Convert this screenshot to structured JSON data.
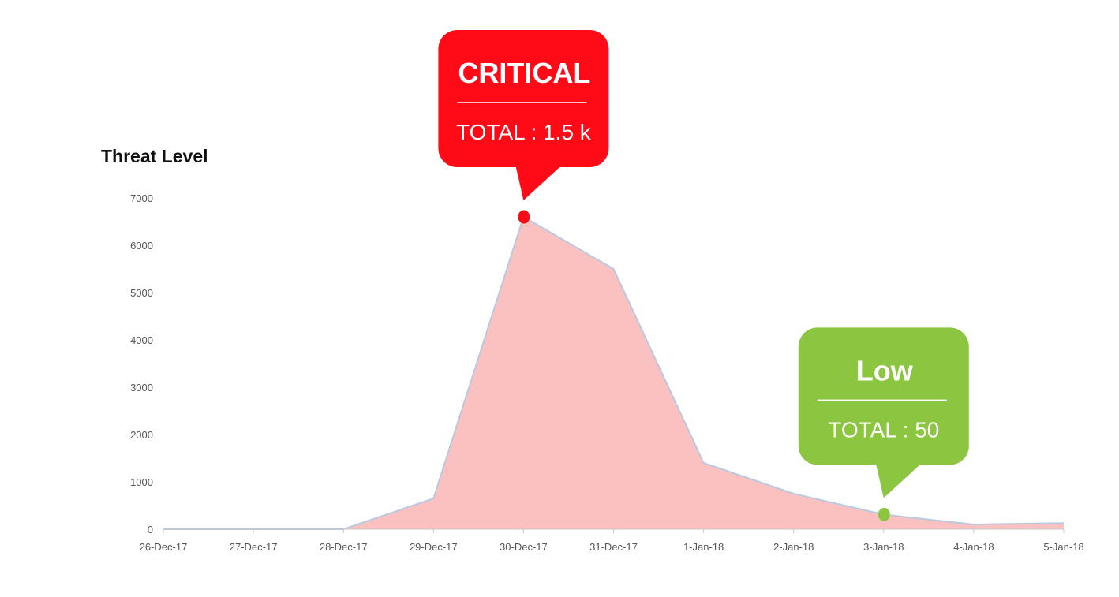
{
  "chart_data": {
    "type": "area",
    "ylabel": "Threat Level",
    "xlabel": "",
    "x": [
      "26-Dec-17",
      "27-Dec-17",
      "28-Dec-17",
      "29-Dec-17",
      "30-Dec-17",
      "31-Dec-17",
      "1-Jan-18",
      "2-Jan-18",
      "3-Jan-18",
      "4-Jan-18",
      "5-Jan-18"
    ],
    "series": [
      {
        "values": [
          0,
          0,
          0,
          650,
          6600,
          5500,
          1400,
          750,
          310,
          100,
          130
        ],
        "fill_color": "#fbc0c0",
        "line_color": "#b9c9e0"
      }
    ],
    "ylim": [
      0,
      7000
    ],
    "yticks": [
      "0",
      "1000",
      "2000",
      "3000",
      "4000",
      "5000",
      "6000",
      "7000"
    ],
    "grid": false,
    "annotations": [
      {
        "label": "CRITICAL",
        "total": "TOTAL : 1.5 k",
        "x": "30-Dec-17",
        "y": 6600,
        "color": "#ff0a16"
      },
      {
        "label": "Low",
        "total": "TOTAL : 50",
        "x": "3-Jan-18",
        "y": 310,
        "color": "#8cc540"
      }
    ]
  }
}
